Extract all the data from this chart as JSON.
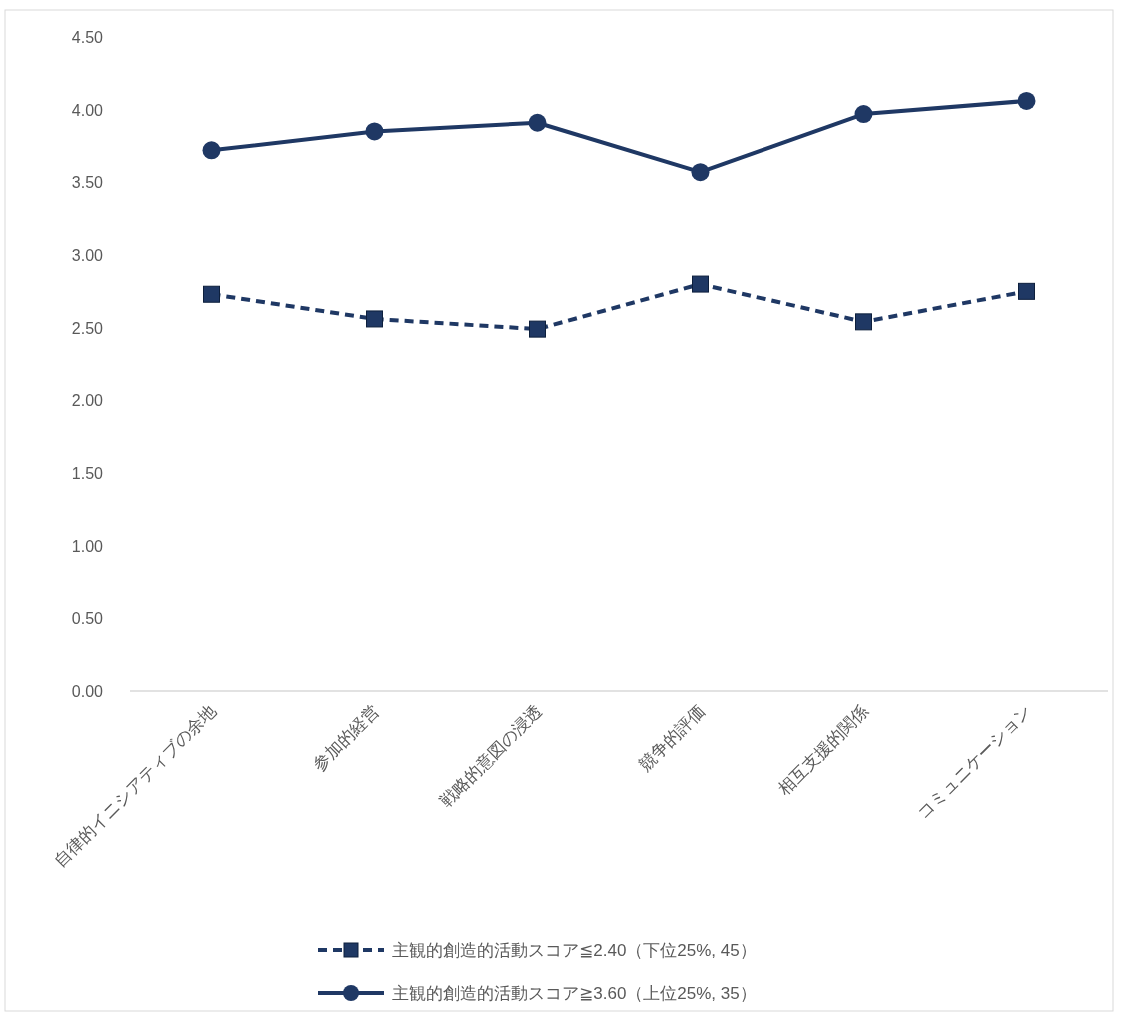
{
  "chart_data": {
    "type": "line",
    "categories": [
      "自律的イニシアティブの余地",
      "参加的経営",
      "戦略的意図の浸透",
      "競争的評価",
      "相互支援的関係",
      "コミュニケーション"
    ],
    "series": [
      {
        "name": "主観的創造的活動スコア≦2.40（下位25%, 45）",
        "color": "#1f3864",
        "marker": "square",
        "line_style": "dashed",
        "values": [
          2.73,
          2.56,
          2.49,
          2.8,
          2.54,
          2.75
        ]
      },
      {
        "name": "主観的創造的活動スコア≧3.60（上位25%, 35）",
        "color": "#1f3864",
        "marker": "circle",
        "line_style": "solid",
        "values": [
          3.72,
          3.85,
          3.91,
          3.57,
          3.97,
          4.06
        ]
      }
    ],
    "ylim": [
      0,
      4.5
    ],
    "yticks": [
      {
        "value": 0,
        "label": "0.00"
      },
      {
        "value": 0.5,
        "label": "0.50"
      },
      {
        "value": 1,
        "label": "1.00"
      },
      {
        "value": 1.5,
        "label": "1.50"
      },
      {
        "value": 2,
        "label": "2.00"
      },
      {
        "value": 2.5,
        "label": "2.50"
      },
      {
        "value": 3,
        "label": "3.00"
      },
      {
        "value": 3.5,
        "label": "3.50"
      },
      {
        "value": 4,
        "label": "4.00"
      },
      {
        "value": 4.5,
        "label": "4.50"
      }
    ],
    "grid": false,
    "legend": "bottom"
  }
}
